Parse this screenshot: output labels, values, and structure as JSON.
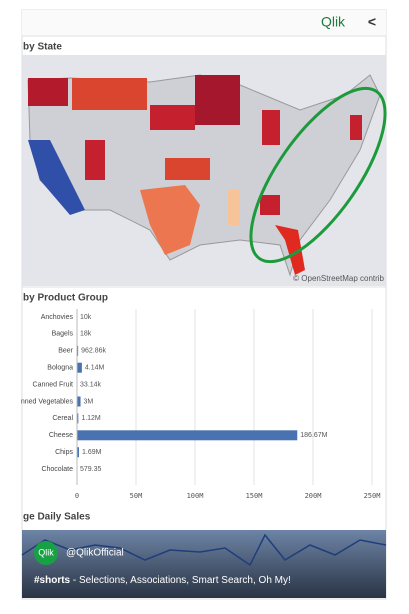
{
  "header": {
    "logo": "Qlik",
    "back": "<"
  },
  "map": {
    "title": "by State",
    "attribution": "© OpenStreetMap contrib"
  },
  "chart_data": {
    "type": "bar",
    "title": "by Product Group",
    "categories": [
      "Anchovies",
      "Bagels",
      "Beer",
      "Bologna",
      "Canned Fruit",
      "nned Vegetables",
      "Cereal",
      "Cheese",
      "Chips",
      "Chocolate"
    ],
    "values": [
      10000,
      18000,
      962860,
      4140000,
      33140,
      3000000,
      1120000,
      186670000,
      1690000,
      579.35
    ],
    "value_labels": [
      "10k",
      "18k",
      "962.86k",
      "4.14M",
      "33.14k",
      "3M",
      "1.12M",
      "186.67M",
      "1.69M",
      "579.35"
    ],
    "color": "#4a72b0",
    "xlim": [
      0,
      250000000
    ],
    "xticks": [
      0,
      {
        "value": 50000000,
        "label": "50M"
      },
      {
        "value": 100000000,
        "label": "100M"
      },
      {
        "value": 150000000,
        "label": "150M"
      },
      {
        "value": 200000000,
        "label": "200M"
      },
      {
        "value": 250000000,
        "label": "250M"
      }
    ],
    "grid": true
  },
  "line_section": {
    "title": "ge Daily Sales"
  },
  "overlay": {
    "badge": "Qlik",
    "handle": "@QlikOfficial",
    "tag": "#shorts",
    "caption": " - Selections, Associations, Smart Search, Oh My!"
  }
}
